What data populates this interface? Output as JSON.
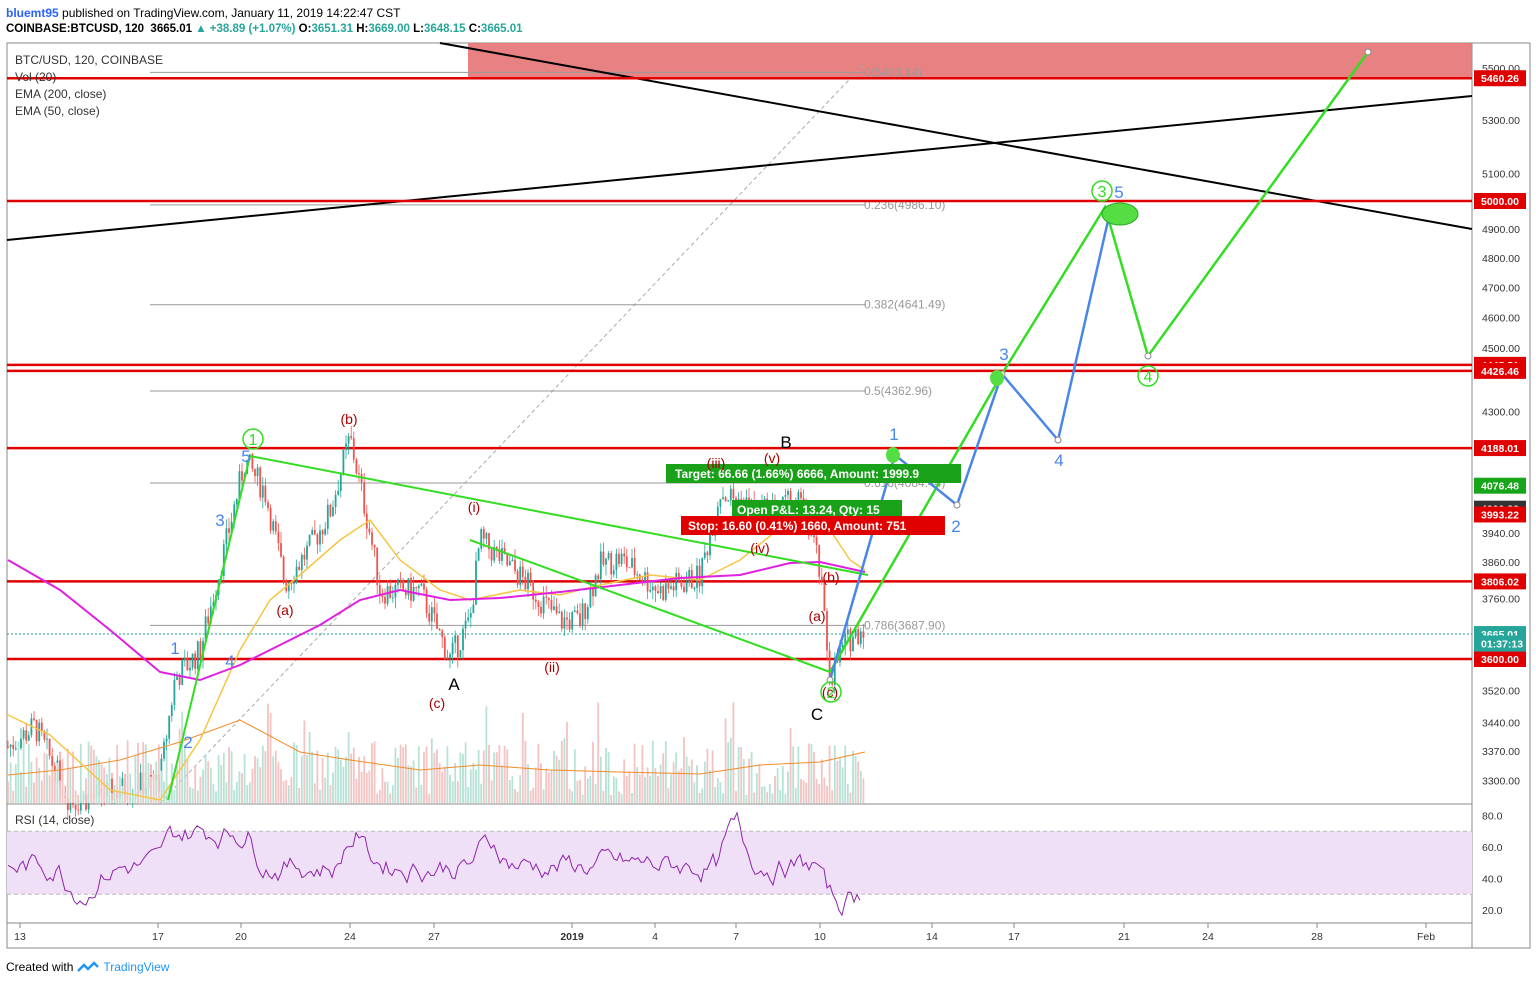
{
  "header": {
    "user": "bluemt95",
    "published_text": "published on TradingView.com, January 11, 2019 14:22:47 CST",
    "symbol": "COINBASE:BTCUSD, 120",
    "last": "3665.01",
    "change": "▲ +38.89 (+1.07%)",
    "open_label": "O:",
    "open": "3651.31",
    "high_label": "H:",
    "high": "3669.00",
    "low_label": "L:",
    "low": "3648.15",
    "close_label": "C:",
    "close": "3665.01"
  },
  "legend": {
    "title": "BTC/USD, 120, COINBASE",
    "vol": "Vol (20)",
    "ema200": "EMA (200, close)",
    "ema50": "EMA (50, close)",
    "rsi": "RSI (14, close)"
  },
  "footer": {
    "created_with": "Created with",
    "brand": "TradingView"
  },
  "colors": {
    "up": "#26a69a",
    "down": "#ef5350",
    "level": "#e00000",
    "wave_green": "#33dd22",
    "wave_blue": "#4a86e8",
    "ema200": "#e020e0",
    "ema50": "#f5c542",
    "rsi": "#8e24aa",
    "resistance_zone": "#e57373"
  },
  "chart_data": {
    "type": "candlestick",
    "scale": "log",
    "ylim": [
      3230,
      5620
    ],
    "x_ticks": [
      "13",
      "17",
      "20",
      "24",
      "27",
      "2019",
      "4",
      "7",
      "10",
      "14",
      "17",
      "21",
      "24",
      "28",
      "Feb"
    ],
    "y_ticks": [
      "5500.00",
      "5300.00",
      "5100.00",
      "4900.00",
      "4800.00",
      "4700.00",
      "4600.00",
      "4500.00",
      "4300.00",
      "3940.00",
      "3860.00",
      "3760.00",
      "3520.00",
      "3440.00",
      "3370.00",
      "3300.00"
    ],
    "horizontal_levels": [
      {
        "value": 5460.26,
        "label": "5460.26"
      },
      {
        "value": 5000.0,
        "label": "5000.00"
      },
      {
        "value": 4445.51,
        "label": "4445.51"
      },
      {
        "value": 4426.46,
        "label": "4426.46"
      },
      {
        "value": 4188.01,
        "label": "4188.01"
      },
      {
        "value": 3806.02,
        "label": "3806.02"
      },
      {
        "value": 3600.0,
        "label": "3600.00"
      }
    ],
    "price_tags": [
      {
        "value": 4076.48,
        "label": "4076.48",
        "color": "#19a519"
      },
      {
        "value": 4009.82,
        "label": "4009.82",
        "color": "#333333"
      },
      {
        "value": 3993.22,
        "label": "3993.22",
        "color": "#e00000"
      },
      {
        "value": 3665.01,
        "label": "3665.01",
        "color": "#26a69a"
      },
      {
        "value": 3640.0,
        "label": "01:37:13",
        "color": "#26a69a"
      }
    ],
    "fibonacci": [
      {
        "value": 5483.14,
        "label": "0(5483.14)"
      },
      {
        "value": 4986.1,
        "label": "0.236(4986.10)"
      },
      {
        "value": 4641.49,
        "label": "0.382(4641.49)"
      },
      {
        "value": 4362.96,
        "label": "0.5(4362.96)"
      },
      {
        "value": 4084.44,
        "label": "0.618(4084.44)"
      },
      {
        "value": 3687.9,
        "label": "0.786(3687.90)"
      }
    ],
    "position": {
      "target": "Target: 66.66 (1.66%) 6666, Amount: 1999.9",
      "open_pl": "Open P&L: 13.24, Qty: 15",
      "stop": "Stop: 16.60 (0.41%) 1660, Amount: 751"
    },
    "wave_labels": [
      "1",
      "2",
      "3",
      "4",
      "5",
      "A",
      "B",
      "C",
      "(a)",
      "(b)",
      "(c)",
      "(i)",
      "(ii)",
      "(iii)",
      "(iv)",
      "(v)",
      "①",
      "③",
      "④"
    ],
    "rsi": {
      "ylim": [
        10,
        85
      ],
      "y_ticks": [
        "80.0",
        "60.0",
        "40.0",
        "20.0"
      ],
      "upper": 70,
      "lower": 30
    }
  }
}
